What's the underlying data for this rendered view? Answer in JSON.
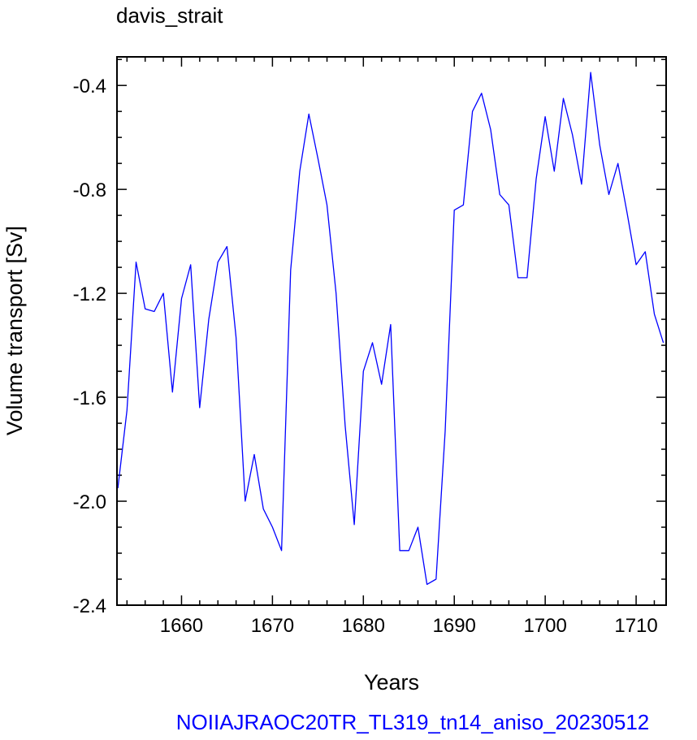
{
  "chart_data": {
    "type": "line",
    "title": "davis_strait",
    "xlabel": "Years",
    "ylabel": "Volume transport [Sv]",
    "footer": "NOIIAJRAOC20TR_TL319_tn14_aniso_20230512",
    "xlim": [
      1652.9,
      1713.3
    ],
    "ylim": [
      -2.4,
      -0.29
    ],
    "x_ticks": [
      1660,
      1670,
      1680,
      1690,
      1700,
      1710
    ],
    "x_tick_labels": [
      "1660",
      "1670",
      "1680",
      "1690",
      "1700",
      "1710"
    ],
    "y_ticks": [
      -2.4,
      -2.0,
      -1.6,
      -1.2,
      -0.8,
      -0.4
    ],
    "y_tick_labels": [
      "-2.4",
      "-2.0",
      "-1.6",
      "-1.2",
      "-0.8",
      "-0.4"
    ],
    "grid": false,
    "series": [
      {
        "color": "#0000ff",
        "x": [
          1653,
          1654,
          1655,
          1656,
          1657,
          1658,
          1659,
          1660,
          1661,
          1662,
          1663,
          1664,
          1665,
          1666,
          1667,
          1668,
          1669,
          1670,
          1671,
          1672,
          1673,
          1674,
          1675,
          1676,
          1677,
          1678,
          1679,
          1680,
          1681,
          1682,
          1683,
          1684,
          1685,
          1686,
          1687,
          1688,
          1689,
          1690,
          1691,
          1692,
          1693,
          1694,
          1695,
          1696,
          1697,
          1698,
          1699,
          1700,
          1701,
          1702,
          1703,
          1704,
          1705,
          1706,
          1707,
          1708,
          1709,
          1710,
          1711,
          1712,
          1713
        ],
        "y": [
          -1.95,
          -1.65,
          -1.08,
          -1.26,
          -1.27,
          -1.2,
          -1.58,
          -1.22,
          -1.09,
          -1.64,
          -1.3,
          -1.08,
          -1.02,
          -1.37,
          -2.0,
          -1.82,
          -2.03,
          -2.1,
          -2.19,
          -1.11,
          -0.73,
          -0.51,
          -0.68,
          -0.86,
          -1.2,
          -1.71,
          -2.09,
          -1.5,
          -1.39,
          -1.55,
          -1.32,
          -2.19,
          -2.19,
          -2.1,
          -2.32,
          -2.3,
          -1.73,
          -0.88,
          -0.86,
          -0.5,
          -0.43,
          -0.57,
          -0.82,
          -0.86,
          -1.14,
          -1.14,
          -0.76,
          -0.52,
          -0.73,
          -0.45,
          -0.59,
          -0.78,
          -0.35,
          -0.63,
          -0.82,
          -0.7,
          -0.89,
          -1.09,
          -1.04,
          -1.28,
          -1.39
        ]
      }
    ]
  }
}
